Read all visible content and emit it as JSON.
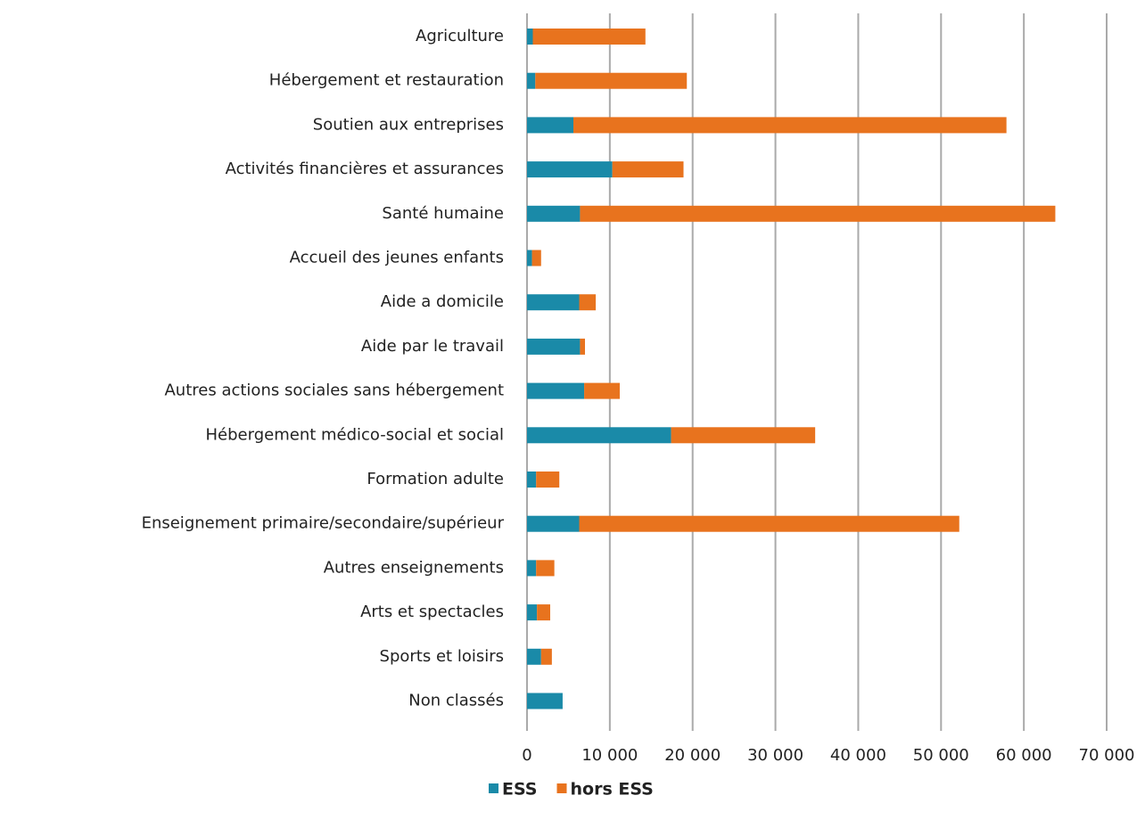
{
  "chart_data": {
    "type": "stacked-bar-horizontal",
    "categories": [
      "Agriculture",
      "Hébergement et restauration",
      "Soutien aux entreprises",
      "Activités financières et assurances",
      "Santé humaine",
      "Accueil des jeunes enfants",
      "Aide a domicile",
      "Aide par le travail",
      "Autres actions sociales sans hébergement",
      "Hébergement médico-social et social",
      "Formation adulte",
      "Enseignement primaire/secondaire/supérieur",
      "Autres enseignements",
      "Arts et spectacles",
      "Sports et loisirs",
      "Non classés"
    ],
    "series": [
      {
        "name": "ESS",
        "color": "#1a8aa8",
        "values": [
          700,
          1000,
          5600,
          10300,
          6400,
          600,
          6300,
          6400,
          6900,
          17400,
          1100,
          6300,
          1100,
          1200,
          1700,
          4300
        ]
      },
      {
        "name": "hors ESS",
        "color": "#e8731e",
        "values": [
          13600,
          18300,
          52300,
          8600,
          57400,
          1100,
          2000,
          600,
          4300,
          17400,
          2800,
          45900,
          2200,
          1600,
          1300,
          0
        ]
      }
    ],
    "xlim": [
      0,
      70000
    ],
    "xticks": [
      0,
      {
        "value": 10000,
        "label": "10 000"
      },
      {
        "value": 20000,
        "label": "20 000"
      },
      {
        "value": 30000,
        "label": "30 000"
      },
      {
        "value": 40000,
        "label": "40 000"
      },
      {
        "value": 50000,
        "label": "50 000"
      },
      {
        "value": 60000,
        "label": "60 000"
      },
      {
        "value": 70000,
        "label": "70 000"
      }
    ],
    "grid": true,
    "legend": "bottom"
  }
}
